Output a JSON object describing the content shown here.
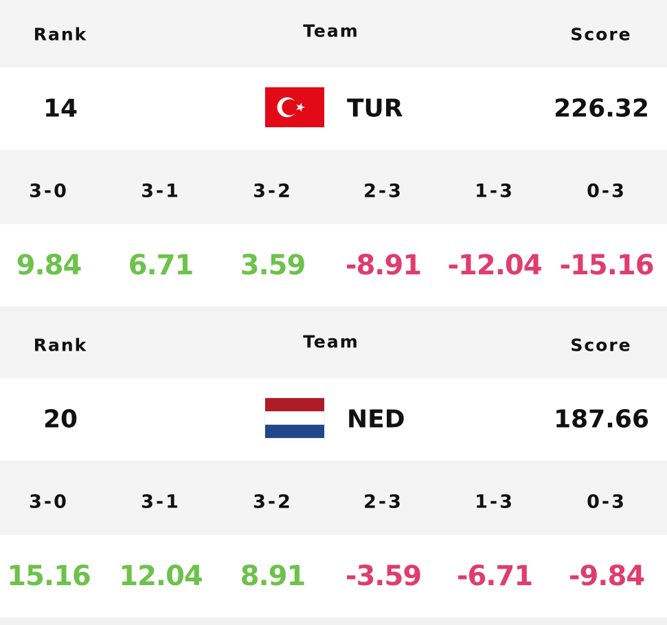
{
  "cards": [
    {
      "header": {
        "rank": "Rank",
        "team": "Team",
        "score": "Score"
      },
      "rank": 14,
      "team": "TUR",
      "score": 226.32,
      "results": {
        "labels": [
          "3-0",
          "3-1",
          "3-2",
          "2-3",
          "1-3",
          "0-3"
        ],
        "values": [
          9.84,
          6.71,
          3.59,
          -8.91,
          -12.04,
          -15.16
        ]
      }
    },
    {
      "header": {
        "rank": "Rank",
        "team": "Team",
        "score": "Score"
      },
      "rank": 20,
      "team": "NED",
      "score": 187.66,
      "results": {
        "labels": [
          "3-0",
          "3-1",
          "3-2",
          "2-3",
          "1-3",
          "0-3"
        ],
        "values": [
          15.16,
          12.04,
          8.91,
          -3.59,
          -6.71,
          -9.84
        ]
      }
    }
  ]
}
